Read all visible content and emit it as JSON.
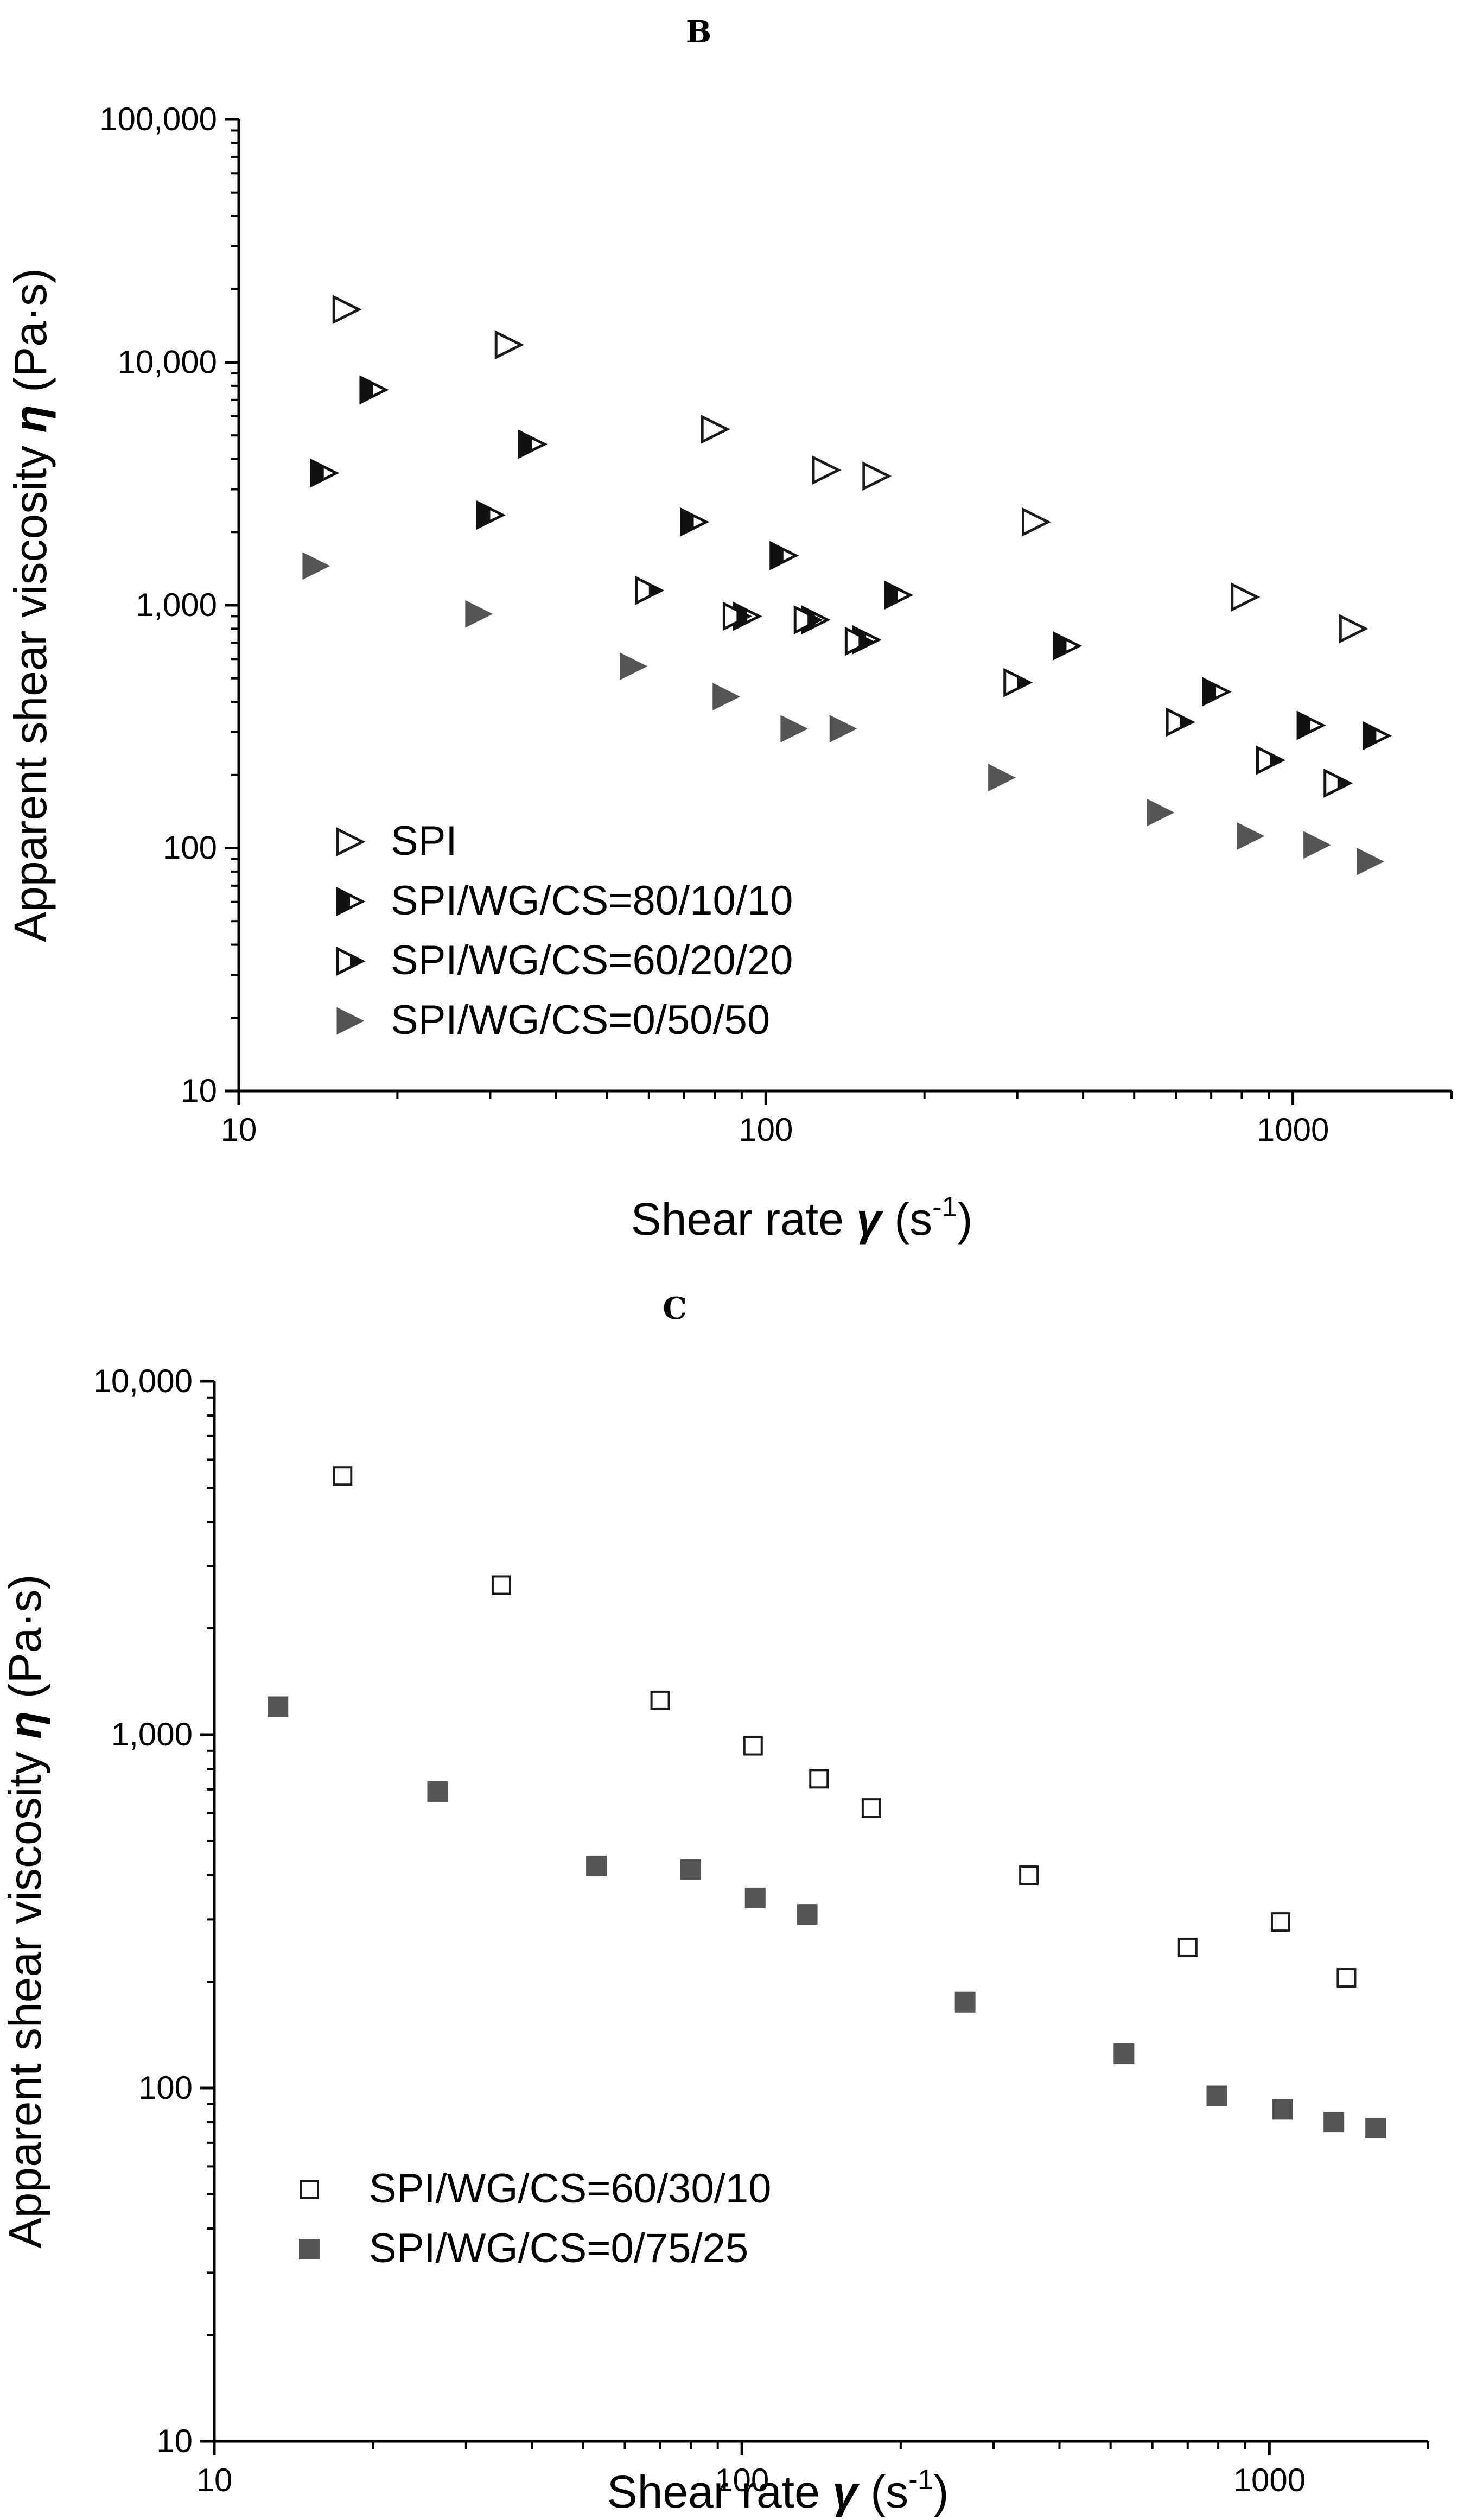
{
  "chart_data": [
    {
      "panel_label": "B",
      "type": "scatter",
      "xscale": "log",
      "yscale": "log",
      "xlim": [
        10,
        2000
      ],
      "ylim": [
        10,
        100000
      ],
      "x_ticks": [
        {
          "value": 10,
          "label": "10"
        },
        {
          "value": 100,
          "label": "100"
        },
        {
          "value": 1000,
          "label": "1000"
        }
      ],
      "y_ticks": [
        {
          "value": 10,
          "label": "10"
        },
        {
          "value": 100,
          "label": "100"
        },
        {
          "value": 1000,
          "label": "1,000"
        },
        {
          "value": 10000,
          "label": "10,000"
        },
        {
          "value": 100000,
          "label": "100,000"
        }
      ],
      "xlabel": {
        "prefix": "Shear rate ",
        "symbol": "γ",
        "mid": " (s",
        "sup": "-1",
        "suffix": ")"
      },
      "ylabel": {
        "prefix": "Apparent shear viscosity  ",
        "symbol": "η",
        "suffix": "  (Pa·s)"
      },
      "legend_position": "bottom-left",
      "series": [
        {
          "name": "SPI",
          "marker": "triangle-open",
          "x": [
            16,
            32.5,
            80,
            130,
            162,
            325,
            810,
            1300
          ],
          "y": [
            16500,
            11800,
            5300,
            3600,
            3400,
            2200,
            1080,
            800
          ]
        },
        {
          "name": "SPI/WG/CS=80/10/10",
          "marker": "triangle-left-filled",
          "x": [
            18,
            36,
            14.5,
            30,
            73,
            108,
            155,
            178,
            92,
            124,
            372,
            715,
            1080,
            1440
          ],
          "y": [
            7700,
            4600,
            3500,
            2350,
            2200,
            1600,
            720,
            1100,
            900,
            870,
            680,
            440,
            320,
            290
          ]
        },
        {
          "name": "SPI/WG/CS=60/20/20",
          "marker": "triangle-right-filled",
          "x": [
            60,
            88,
            120,
            150,
            300,
            610,
            905,
            1215
          ],
          "y": [
            1150,
            900,
            870,
            710,
            480,
            330,
            230,
            185
          ]
        },
        {
          "name": "SPI/WG/CS=0/50/50",
          "marker": "triangle-filled",
          "x": [
            14,
            28.5,
            56,
            84,
            113,
            140,
            280,
            560,
            830,
            1110,
            1400
          ],
          "y": [
            1450,
            920,
            560,
            420,
            310,
            310,
            195,
            140,
            112,
            103,
            88
          ]
        }
      ]
    },
    {
      "panel_label": "C",
      "type": "scatter",
      "xscale": "log",
      "yscale": "log",
      "xlim": [
        10,
        2000
      ],
      "ylim": [
        10,
        10000
      ],
      "x_ticks": [
        {
          "value": 10,
          "label": "10"
        },
        {
          "value": 100,
          "label": "100"
        },
        {
          "value": 1000,
          "label": "1000"
        }
      ],
      "y_ticks": [
        {
          "value": 10,
          "label": "10"
        },
        {
          "value": 100,
          "label": "100"
        },
        {
          "value": 1000,
          "label": "1,000"
        },
        {
          "value": 10000,
          "label": "10,000"
        }
      ],
      "xlabel": {
        "prefix": "Shear rate ",
        "symbol": "γ",
        "mid": " (s",
        "sup": "-1",
        "suffix": ")"
      },
      "ylabel": {
        "prefix": "Apparent shear viscosity  ",
        "symbol": "η",
        "suffix": "  (Pa·s)"
      },
      "legend_position": "bottom-left",
      "series": [
        {
          "name": "SPI/WG/CS=60/30/10",
          "marker": "square-open",
          "x": [
            17.5,
            35,
            70,
            105,
            140,
            176,
            350,
            700,
            1050,
            1400
          ],
          "y": [
            5400,
            2650,
            1250,
            930,
            750,
            620,
            400,
            250,
            295,
            205
          ]
        },
        {
          "name": "SPI/WG/CS=0/75/25",
          "marker": "square-filled",
          "x": [
            13.2,
            26.5,
            53,
            80,
            106,
            133,
            265,
            530,
            795,
            1060,
            1325,
            1590
          ],
          "y": [
            1200,
            690,
            425,
            415,
            345,
            310,
            175,
            125,
            95,
            87,
            80,
            77
          ]
        }
      ]
    }
  ],
  "colors": {
    "open_stroke": "#1a1a1a",
    "filled": "#555555",
    "half_dark": "#111111",
    "axis": "#000000"
  }
}
